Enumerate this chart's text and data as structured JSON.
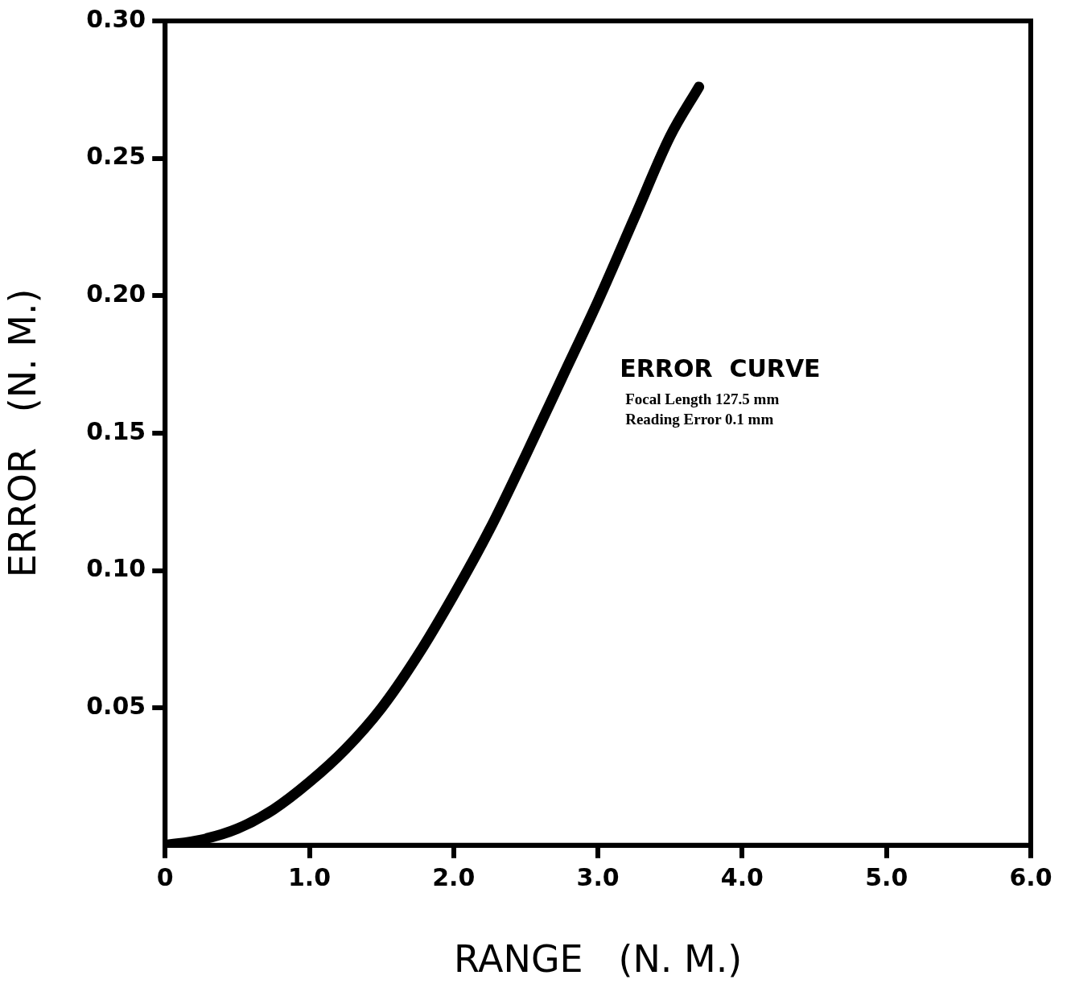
{
  "chart_data": {
    "type": "line",
    "xlabel": "RANGE   (N. M.)",
    "ylabel": "ERROR   (N. M.)",
    "annotations": [
      "ERROR  CURVE",
      "Focal Length 127.5 mm",
      "Reading Error 0.1 mm"
    ],
    "series": [
      {
        "color": "#000000",
        "x": [
          0,
          0.25,
          0.5,
          0.75,
          1.0,
          1.25,
          1.5,
          1.75,
          2.0,
          2.25,
          2.5,
          2.75,
          3.0,
          3.25,
          3.5,
          3.7
        ],
        "values": [
          0,
          0.002,
          0.006,
          0.013,
          0.023,
          0.035,
          0.05,
          0.069,
          0.091,
          0.115,
          0.142,
          0.17,
          0.198,
          0.228,
          0.258,
          0.276
        ]
      }
    ],
    "xlim": [
      0,
      6
    ],
    "xticks": [
      0,
      {
        "value": 1,
        "label": "1.0"
      },
      {
        "value": 2,
        "label": "2.0"
      },
      {
        "value": 3,
        "label": "3.0"
      },
      {
        "value": 4,
        "label": "4.0"
      },
      {
        "value": 5,
        "label": "5.0"
      },
      {
        "value": 6,
        "label": "6.0"
      }
    ],
    "ylim": [
      0,
      0.3
    ],
    "yticks": [
      {
        "value": 0.05,
        "label": "0.05"
      },
      {
        "value": 0.1,
        "label": "0.10"
      },
      {
        "value": 0.15,
        "label": "0.15"
      },
      {
        "value": 0.2,
        "label": "0.20"
      },
      {
        "value": 0.25,
        "label": "0.25"
      },
      {
        "value": 0.3,
        "label": "0.30"
      }
    ],
    "grid": false,
    "legend": false,
    "marker": "none",
    "line_style": "solid"
  }
}
